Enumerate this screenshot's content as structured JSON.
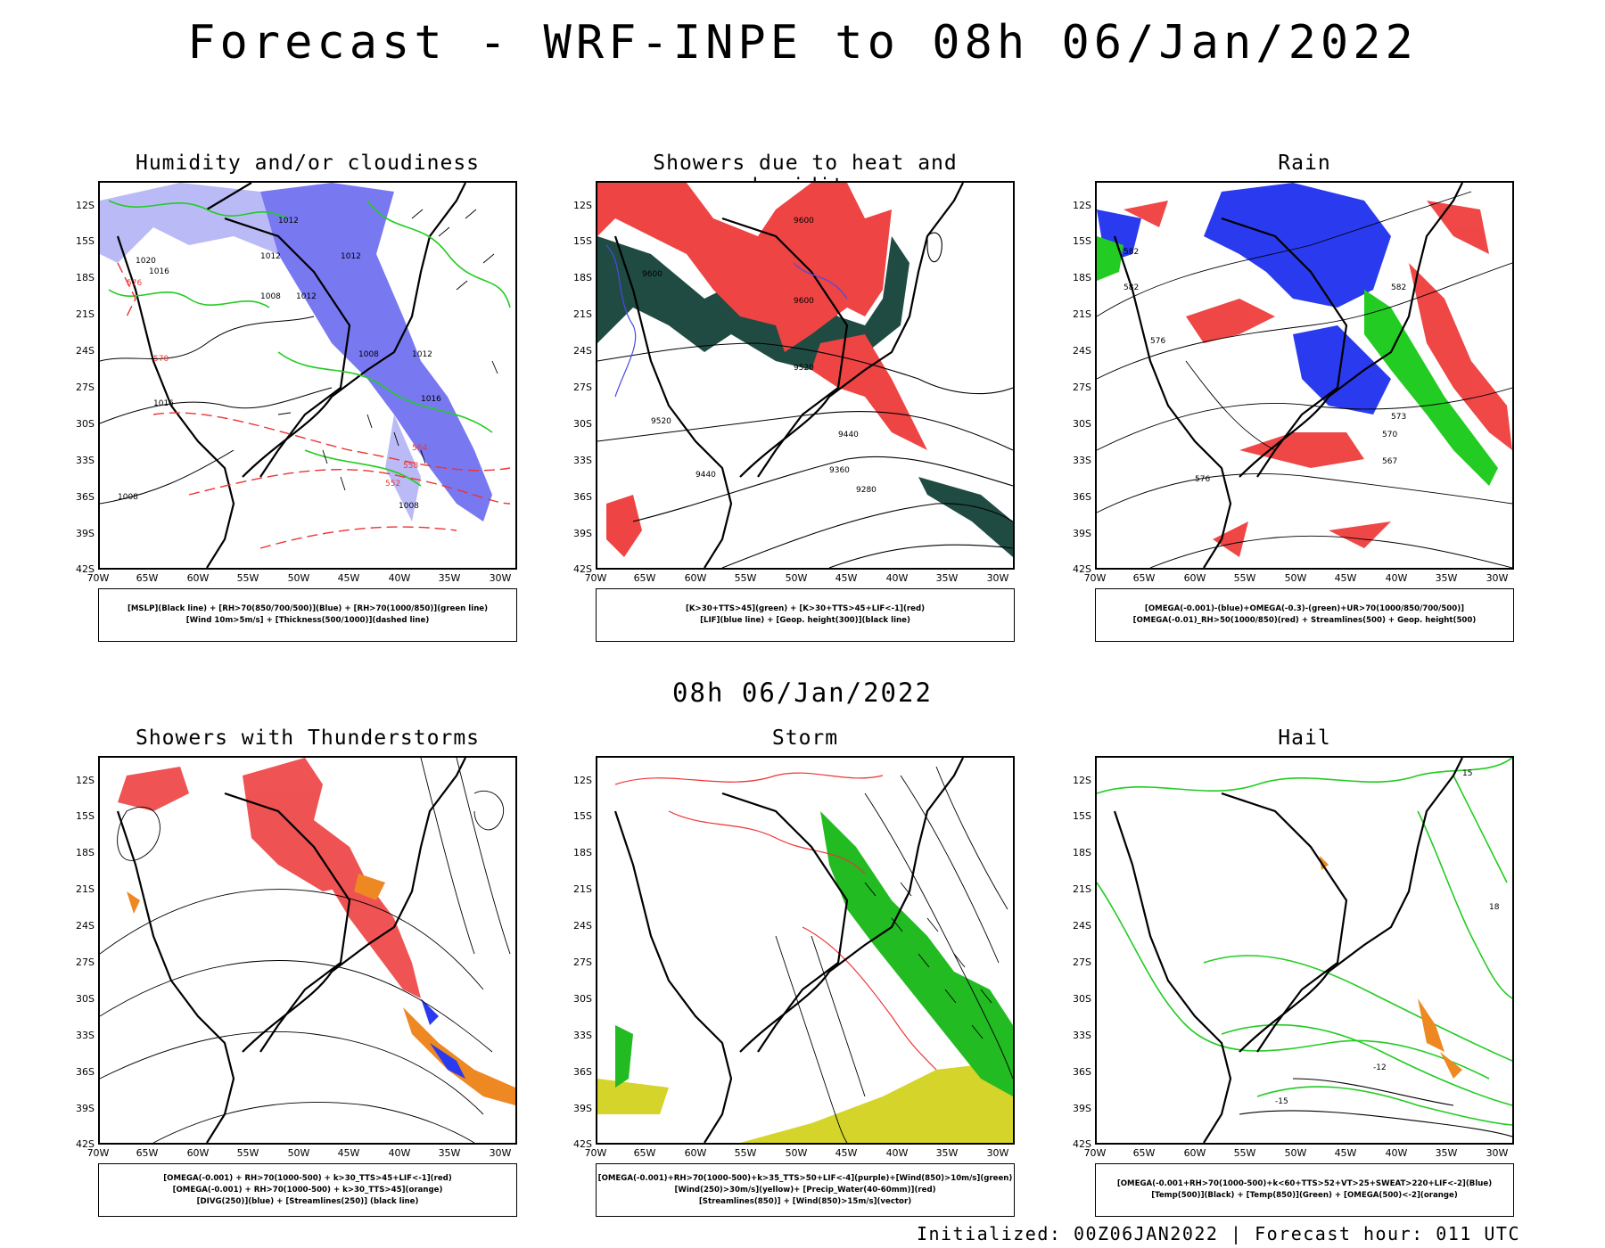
{
  "title": "Forecast - WRF-INPE to 08h 06/Jan/2022",
  "mid_title": "08h 06/Jan/2022",
  "footer": "Initialized: 00Z06JAN2022 | Forecast hour: 011 UTC",
  "lat_labels": [
    "12S",
    "15S",
    "18S",
    "21S",
    "24S",
    "27S",
    "30S",
    "33S",
    "36S",
    "39S",
    "42S"
  ],
  "lon_labels": [
    "70W",
    "65W",
    "60W",
    "55W",
    "50W",
    "45W",
    "40W",
    "35W",
    "30W"
  ],
  "panels": [
    {
      "title": "Humidity and/or cloudiness",
      "legend": [
        "[MSLP](Black line) + [RH>70(850/700/500)](Blue) + [RH>70(1000/850)](green line)",
        "[Wind 10m>5m/s] + [Thickness(500/1000)](dashed line)"
      ]
    },
    {
      "title": "Showers due to heat and humidity",
      "legend": [
        "[K>30+TTS>45](green) + [K>30+TTS>45+LIF<-1](red)",
        "[LIF](blue line) + [Geop. height(300)](black line)"
      ]
    },
    {
      "title": "Rain",
      "legend": [
        "[OMEGA(-0.001)-(blue)+OMEGA(-0.3)-(green)+UR>70(1000/850/700/500)]",
        "[OMEGA(-0.01)_RH>50(1000/850)(red) + Streamlines(500) + Geop. height(500)"
      ]
    },
    {
      "title": "Showers with Thunderstorms",
      "legend": [
        "[OMEGA(-0.001) + RH>70(1000-500) + k>30_TTS>45+LIF<-1](red)",
        "[OMEGA(-0.001) + RH>70(1000-500) + k>30_TTS>45](orange)",
        "[DIVG(250)](blue) + [Streamlines(250)] (black line)"
      ]
    },
    {
      "title": "Storm",
      "legend": [
        "[OMEGA(-0.001)+RH>70(1000-500)+k>35_TTS>50+LIF<-4](purple)+[Wind(850)>10m/s](green)",
        "[Wind(250)>30m/s](yellow)+ [Precip_Water(40-60mm)](red)",
        "[Streamlines(850)] + [Wind(850)>15m/s](vector)"
      ]
    },
    {
      "title": "Hail",
      "legend": [
        "[OMEGA(-0.001+RH>70(1000-500)+k<60+TTS>52+VT>25+SWEAT>220+LIF<-2](Blue)",
        "[Temp(500)](Black) + [Temp(850)](Green) + [OMEGA(500)<-2](orange)"
      ]
    }
  ],
  "contour_labels": {
    "p1": [
      "1012",
      "1012",
      "1012",
      "1020",
      "1016",
      "1008",
      "1012",
      "1008",
      "1012",
      "1016",
      "1016",
      "1008",
      "570",
      "576",
      "564",
      "558",
      "552",
      "1008"
    ],
    "p2": [
      "9600",
      "9600",
      "9600",
      "9520",
      "9520",
      "9440",
      "9440",
      "9360",
      "9280"
    ],
    "p3": [
      "582",
      "582",
      "576",
      "570",
      "567",
      "573",
      "576",
      "582"
    ],
    "p6": [
      "-15",
      "-12",
      "15",
      "18"
    ]
  },
  "colors": {
    "blue": "#4a4ae6",
    "lightblue": "#a9a9f5",
    "green": "#22cc22",
    "red": "#ee3333",
    "darkgreen": "#1f4b43",
    "orange": "#ee8822",
    "yellow": "#d4d42a"
  }
}
